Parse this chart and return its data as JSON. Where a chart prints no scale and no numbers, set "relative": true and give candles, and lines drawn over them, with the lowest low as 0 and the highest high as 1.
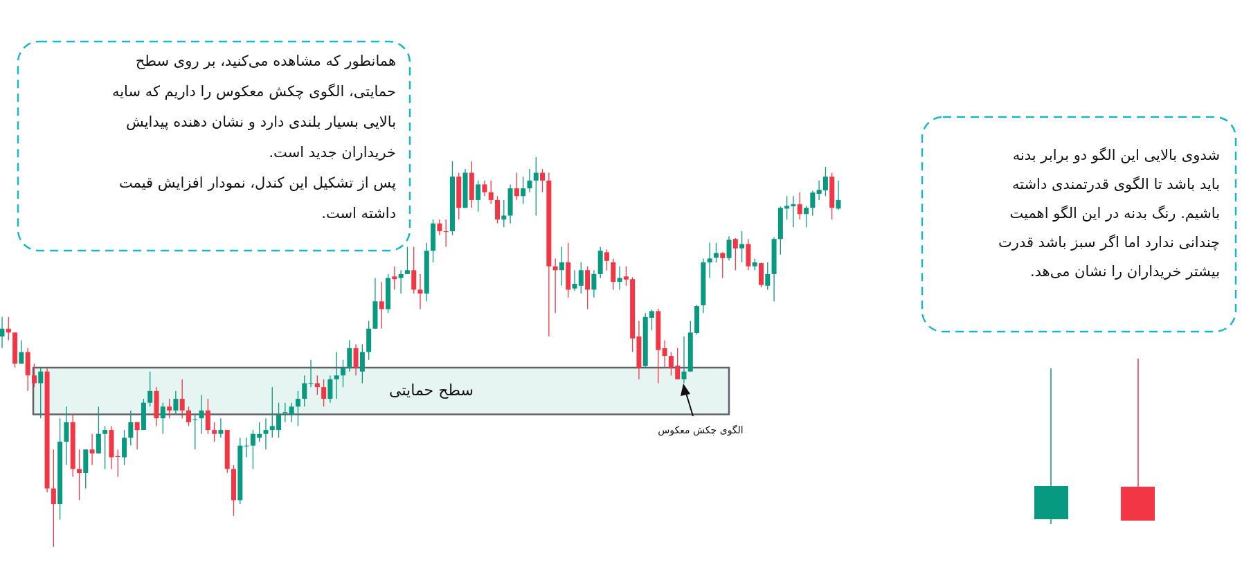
{
  "chart_data": {
    "type": "candlestick",
    "relative": true,
    "categories": [
      null,
      null,
      null,
      null,
      null,
      null,
      null,
      null,
      null,
      null,
      null,
      null,
      null,
      null,
      null,
      null,
      null,
      null,
      null,
      null,
      null,
      null,
      null,
      null,
      null,
      null,
      null,
      null,
      null,
      null,
      null,
      null,
      null,
      null,
      null,
      null,
      null,
      null,
      null,
      null,
      null,
      null,
      null,
      null,
      null,
      null,
      null,
      null,
      null,
      null,
      null,
      null,
      null,
      null,
      null,
      null,
      null,
      null,
      null,
      null,
      null,
      null,
      null,
      null,
      null,
      null,
      null,
      null,
      null,
      null,
      null,
      null,
      null,
      null,
      null,
      null,
      null,
      null,
      null,
      null,
      null,
      null,
      null,
      null,
      null,
      null,
      null,
      null,
      null,
      null,
      null,
      null,
      null,
      null,
      null,
      null,
      null,
      null,
      null,
      null,
      null,
      null,
      null,
      null,
      null,
      null,
      null,
      null,
      null,
      null,
      null,
      null,
      null,
      null,
      null,
      null,
      null,
      null,
      null,
      null,
      null,
      null,
      null,
      null,
      null,
      null,
      null,
      null,
      null,
      null,
      null
    ],
    "ohlc": [
      [
        0.54,
        0.59,
        0.51,
        0.56
      ],
      [
        0.56,
        0.59,
        0.53,
        0.55
      ],
      [
        0.55,
        0.55,
        0.46,
        0.47
      ],
      [
        0.47,
        0.53,
        0.47,
        0.5
      ],
      [
        0.5,
        0.51,
        0.4,
        0.44
      ],
      [
        0.44,
        0.47,
        0.41,
        0.42
      ],
      [
        0.42,
        0.46,
        0.33,
        0.45
      ],
      [
        0.45,
        0.46,
        0.14,
        0.15
      ],
      [
        0.15,
        0.25,
        0,
        0.11
      ],
      [
        0.11,
        0.33,
        0.07,
        0.27
      ],
      [
        0.27,
        0.36,
        0.21,
        0.32
      ],
      [
        0.32,
        0.34,
        0.18,
        0.2
      ],
      [
        0.2,
        0.25,
        0.12,
        0.19
      ],
      [
        0.19,
        0.25,
        0.15,
        0.25
      ],
      [
        0.25,
        0.29,
        0.21,
        0.24
      ],
      [
        0.24,
        0.36,
        0.24,
        0.29
      ],
      [
        0.29,
        0.31,
        0.2,
        0.3
      ],
      [
        0.3,
        0.31,
        0.2,
        0.23
      ],
      [
        0.233,
        0.25,
        0.18,
        0.231
      ],
      [
        0.23,
        0.3,
        0.21,
        0.28
      ],
      [
        0.28,
        0.35,
        0.26,
        0.32
      ],
      [
        0.32,
        0.32,
        0.25,
        0.3
      ],
      [
        0.3,
        0.38,
        0.3,
        0.37
      ],
      [
        0.37,
        0.45,
        0.36,
        0.4
      ],
      [
        0.4,
        0.41,
        0.31,
        0.33
      ],
      [
        0.33,
        0.37,
        0.29,
        0.36
      ],
      [
        0.36,
        0.38,
        0.33,
        0.35
      ],
      [
        0.35,
        0.4,
        0.34,
        0.38
      ],
      [
        0.38,
        0.43,
        0.33,
        0.35
      ],
      [
        0.35,
        0.36,
        0.31,
        0.32
      ],
      [
        0.325,
        0.34,
        0.25,
        0.327
      ],
      [
        0.33,
        0.39,
        0.29,
        0.35
      ],
      [
        0.35,
        0.38,
        0.29,
        0.3
      ],
      [
        0.3,
        0.32,
        0.27,
        0.29
      ],
      [
        0.29,
        0.33,
        0.28,
        0.3
      ],
      [
        0.3,
        0.3,
        0.19,
        0.2
      ],
      [
        0.2,
        0.21,
        0.08,
        0.12
      ],
      [
        0.12,
        0.28,
        0.11,
        0.26
      ],
      [
        0.258,
        0.28,
        0.23,
        0.26
      ],
      [
        0.26,
        0.3,
        0.2,
        0.29
      ],
      [
        0.28,
        0.32,
        0.27,
        0.29
      ],
      [
        0.29,
        0.33,
        0.25,
        0.3
      ],
      [
        0.3,
        0.41,
        0.28,
        0.31
      ],
      [
        0.3,
        0.37,
        0.28,
        0.34
      ],
      [
        0.343,
        0.37,
        0.32,
        0.346
      ],
      [
        0.34,
        0.37,
        0.32,
        0.36
      ],
      [
        0.36,
        0.4,
        0.31,
        0.38
      ],
      [
        0.38,
        0.44,
        0.36,
        0.42
      ],
      [
        0.42,
        0.48,
        0.41,
        0.421
      ],
      [
        0.42,
        0.44,
        0.39,
        0.41
      ],
      [
        0.41,
        0.43,
        0.36,
        0.38
      ],
      [
        0.38,
        0.44,
        0.37,
        0.43
      ],
      [
        0.43,
        0.5,
        0.38,
        0.44
      ],
      [
        0.44,
        0.48,
        0.41,
        0.46
      ],
      [
        0.46,
        0.53,
        0.45,
        0.51
      ],
      [
        0.51,
        0.52,
        0.44,
        0.46
      ],
      [
        0.45,
        0.52,
        0.42,
        0.5
      ],
      [
        0.5,
        0.58,
        0.48,
        0.56
      ],
      [
        0.56,
        0.69,
        0.56,
        0.63
      ],
      [
        0.63,
        0.68,
        0.56,
        0.61
      ],
      [
        0.61,
        0.7,
        0.6,
        0.69
      ],
      [
        0.694,
        0.72,
        0.66,
        0.687
      ],
      [
        0.69,
        0.71,
        0.65,
        0.7
      ],
      [
        0.7,
        0.77,
        0.7,
        0.71
      ],
      [
        0.71,
        0.77,
        0.65,
        0.66
      ],
      [
        0.66,
        0.7,
        0.61,
        0.65
      ],
      [
        0.65,
        0.78,
        0.63,
        0.76
      ],
      [
        0.76,
        0.84,
        0.73,
        0.83
      ],
      [
        0.83,
        0.84,
        0.8,
        0.81
      ],
      [
        0.81,
        0.84,
        0.77,
        0.808
      ],
      [
        0.81,
        0.99,
        0.8,
        0.95
      ],
      [
        0.95,
        0.96,
        0.84,
        0.87
      ],
      [
        0.87,
        0.97,
        0.87,
        0.96
      ],
      [
        0.96,
        0.99,
        0.87,
        0.89
      ],
      [
        0.89,
        0.94,
        0.86,
        0.93
      ],
      [
        0.93,
        0.94,
        0.9,
        0.91
      ],
      [
        0.91,
        0.94,
        0.88,
        0.89
      ],
      [
        0.89,
        0.9,
        0.83,
        0.84
      ],
      [
        0.84,
        0.89,
        0.82,
        0.85
      ],
      [
        0.85,
        0.93,
        0.83,
        0.92
      ],
      [
        0.92,
        0.96,
        0.89,
        0.9
      ],
      [
        0.9,
        0.95,
        0.88,
        0.92
      ],
      [
        0.92,
        0.97,
        0.91,
        0.94
      ],
      [
        0.94,
        1,
        0.85,
        0.96
      ],
      [
        0.96,
        0.97,
        0.91,
        0.94
      ],
      [
        0.94,
        0.96,
        0.54,
        0.72
      ],
      [
        0.72,
        0.74,
        0.6,
        0.71
      ],
      [
        0.71,
        0.77,
        0.67,
        0.73
      ],
      [
        0.73,
        0.78,
        0.64,
        0.66
      ],
      [
        0.663,
        0.71,
        0.657,
        0.675
      ],
      [
        0.67,
        0.73,
        0.65,
        0.71
      ],
      [
        0.71,
        0.72,
        0.61,
        0.66
      ],
      [
        0.66,
        0.71,
        0.64,
        0.7
      ],
      [
        0.7,
        0.77,
        0.69,
        0.76
      ],
      [
        0.756,
        0.763,
        0.709,
        0.734
      ],
      [
        0.73,
        0.74,
        0.66,
        0.68
      ],
      [
        0.68,
        0.72,
        0.66,
        0.69
      ],
      [
        0.694,
        0.72,
        0.67,
        0.686
      ],
      [
        0.687,
        0.692,
        0.5,
        0.535
      ],
      [
        0.54,
        0.58,
        0.43,
        0.46
      ],
      [
        0.464,
        0.6,
        0.459,
        0.59
      ],
      [
        0.588,
        0.609,
        0.556,
        0.605
      ],
      [
        0.605,
        0.611,
        0.42,
        0.505
      ],
      [
        0.51,
        0.53,
        0.46,
        0.49
      ],
      [
        0.49,
        0.5,
        0.44,
        0.46
      ],
      [
        0.465,
        0.51,
        0.43,
        0.43
      ],
      [
        0.43,
        0.54,
        0.42,
        0.45
      ],
      [
        0.45,
        0.58,
        0.45,
        0.55
      ],
      [
        0.549,
        0.621,
        0.545,
        0.618
      ],
      [
        0.62,
        0.74,
        0.6,
        0.73
      ],
      [
        0.73,
        0.78,
        0.69,
        0.74
      ],
      [
        0.742,
        0.78,
        0.73,
        0.754
      ],
      [
        0.754,
        0.756,
        0.69,
        0.741
      ],
      [
        0.741,
        0.797,
        0.735,
        0.788
      ],
      [
        0.79,
        0.792,
        0.71,
        0.766
      ],
      [
        0.766,
        0.81,
        0.73,
        0.777
      ],
      [
        0.777,
        0.79,
        0.71,
        0.72
      ],
      [
        0.72,
        0.74,
        0.71,
        0.73
      ],
      [
        0.728,
        0.73,
        0.666,
        0.672
      ],
      [
        0.67,
        0.73,
        0.66,
        0.7
      ],
      [
        0.7,
        0.795,
        0.63,
        0.79
      ],
      [
        0.79,
        0.873,
        0.75,
        0.87
      ],
      [
        0.868,
        0.9,
        0.84,
        0.875
      ],
      [
        0.874,
        0.9,
        0.82,
        0.879
      ],
      [
        0.879,
        0.91,
        0.84,
        0.854
      ],
      [
        0.854,
        0.875,
        0.82,
        0.87
      ],
      [
        0.87,
        0.914,
        0.85,
        0.909
      ],
      [
        0.906,
        0.94,
        0.89,
        0.916
      ],
      [
        0.915,
        0.975,
        0.9,
        0.95
      ],
      [
        0.95,
        0.96,
        0.84,
        0.87
      ],
      [
        0.868,
        0.94,
        0.865,
        0.89
      ]
    ],
    "bands": [
      {
        "axis": "y",
        "from": 0.34,
        "to": 0.46,
        "label": "سطح حمایتی",
        "color": "#e6f5f1"
      }
    ],
    "annotations": [
      "همانطور که مشاهده می‌کنید، بر روی سطح\nحمایتی، الگوی چکش معکوس را داریم که سایه\nبالایی بسیار بلندی دارد و نشان دهنده پیدایش\nخریداران جدید است.\nپس از تشکیل این کندل، نمودار افزایش قیمت\nداشته است.",
      "شدوی بالایی این الگو دو برابر بدنه\nباید باشد تا الگوی قدرتمندی داشته\nباشیم. رنگ بدنه در این الگو اهمیت\nچندانی ندارد اما اگر سبز باشد قدرت\nبیشتر خریداران را نشان می‌هد.",
      "الگوی چکش معکوس"
    ]
  }
}
